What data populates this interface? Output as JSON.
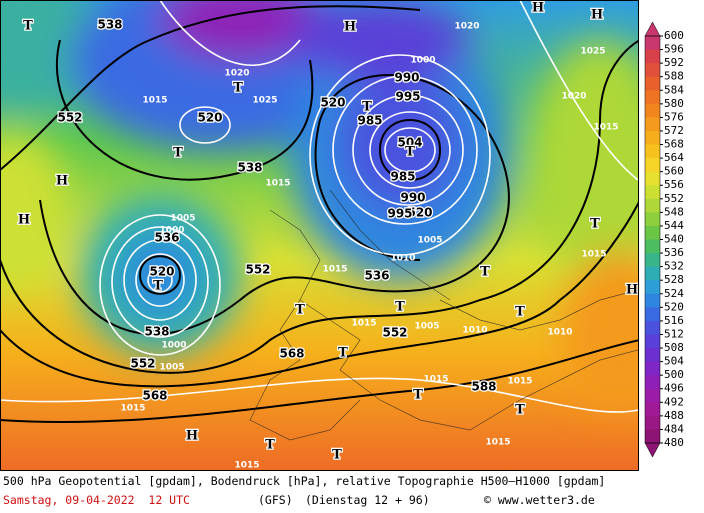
{
  "map": {
    "contour_labels": [
      "538",
      "520",
      "520",
      "504",
      "520",
      "538",
      "552",
      "536",
      "520",
      "552",
      "538",
      "552",
      "568",
      "536",
      "552",
      "568",
      "588",
      "1015",
      "1015",
      "1005",
      "1000",
      "995",
      "990",
      "985",
      "985",
      "990",
      "995",
      "1005",
      "1010",
      "1015",
      "1015",
      "1010",
      "1005",
      "1010",
      "1015",
      "1015",
      "1015",
      "1015",
      "1015",
      "1015",
      "1015",
      "1020",
      "1025",
      "1025",
      "1020",
      "1020",
      "1000",
      "1005",
      "1000"
    ],
    "markers": [
      "T",
      "T",
      "T",
      "T",
      "T",
      "T",
      "T",
      "T",
      "T",
      "T",
      "T",
      "T",
      "T",
      "T",
      "T",
      "T",
      "H",
      "H",
      "H",
      "H",
      "H",
      "H",
      "H"
    ]
  },
  "legend": {
    "ticks": [
      600,
      596,
      592,
      588,
      584,
      580,
      576,
      572,
      568,
      564,
      560,
      556,
      552,
      548,
      544,
      540,
      536,
      532,
      528,
      524,
      520,
      516,
      512,
      508,
      504,
      500,
      496,
      492,
      488,
      484,
      480
    ],
    "colors": [
      "#c8386e",
      "#d8404a",
      "#e0503a",
      "#e8602c",
      "#ee7424",
      "#f2861e",
      "#f49a1c",
      "#f6ae1c",
      "#f8c21e",
      "#f6d428",
      "#e8e030",
      "#cce034",
      "#aed838",
      "#8ecf3e",
      "#6cc646",
      "#4cbd60",
      "#38b68a",
      "#2eaeb4",
      "#2e9ed8",
      "#2f86e0",
      "#3a6ae2",
      "#4a52de",
      "#5a40d8",
      "#6c30d0",
      "#7e26c6",
      "#8e20b8",
      "#9a1ca8",
      "#a01a96",
      "#9a1884",
      "#8c1472"
    ]
  },
  "footer": {
    "line1": "500 hPa Geopotential [gpdam], Bodendruck [hPa], relative Topographie H500–H1000 [gpdam]",
    "date": "Samstag, 09-04-2022  12 UTC",
    "model": "(GFS)",
    "run": "(Dienstag 12 + 96)",
    "copyright": "© www.wetter3.de"
  }
}
